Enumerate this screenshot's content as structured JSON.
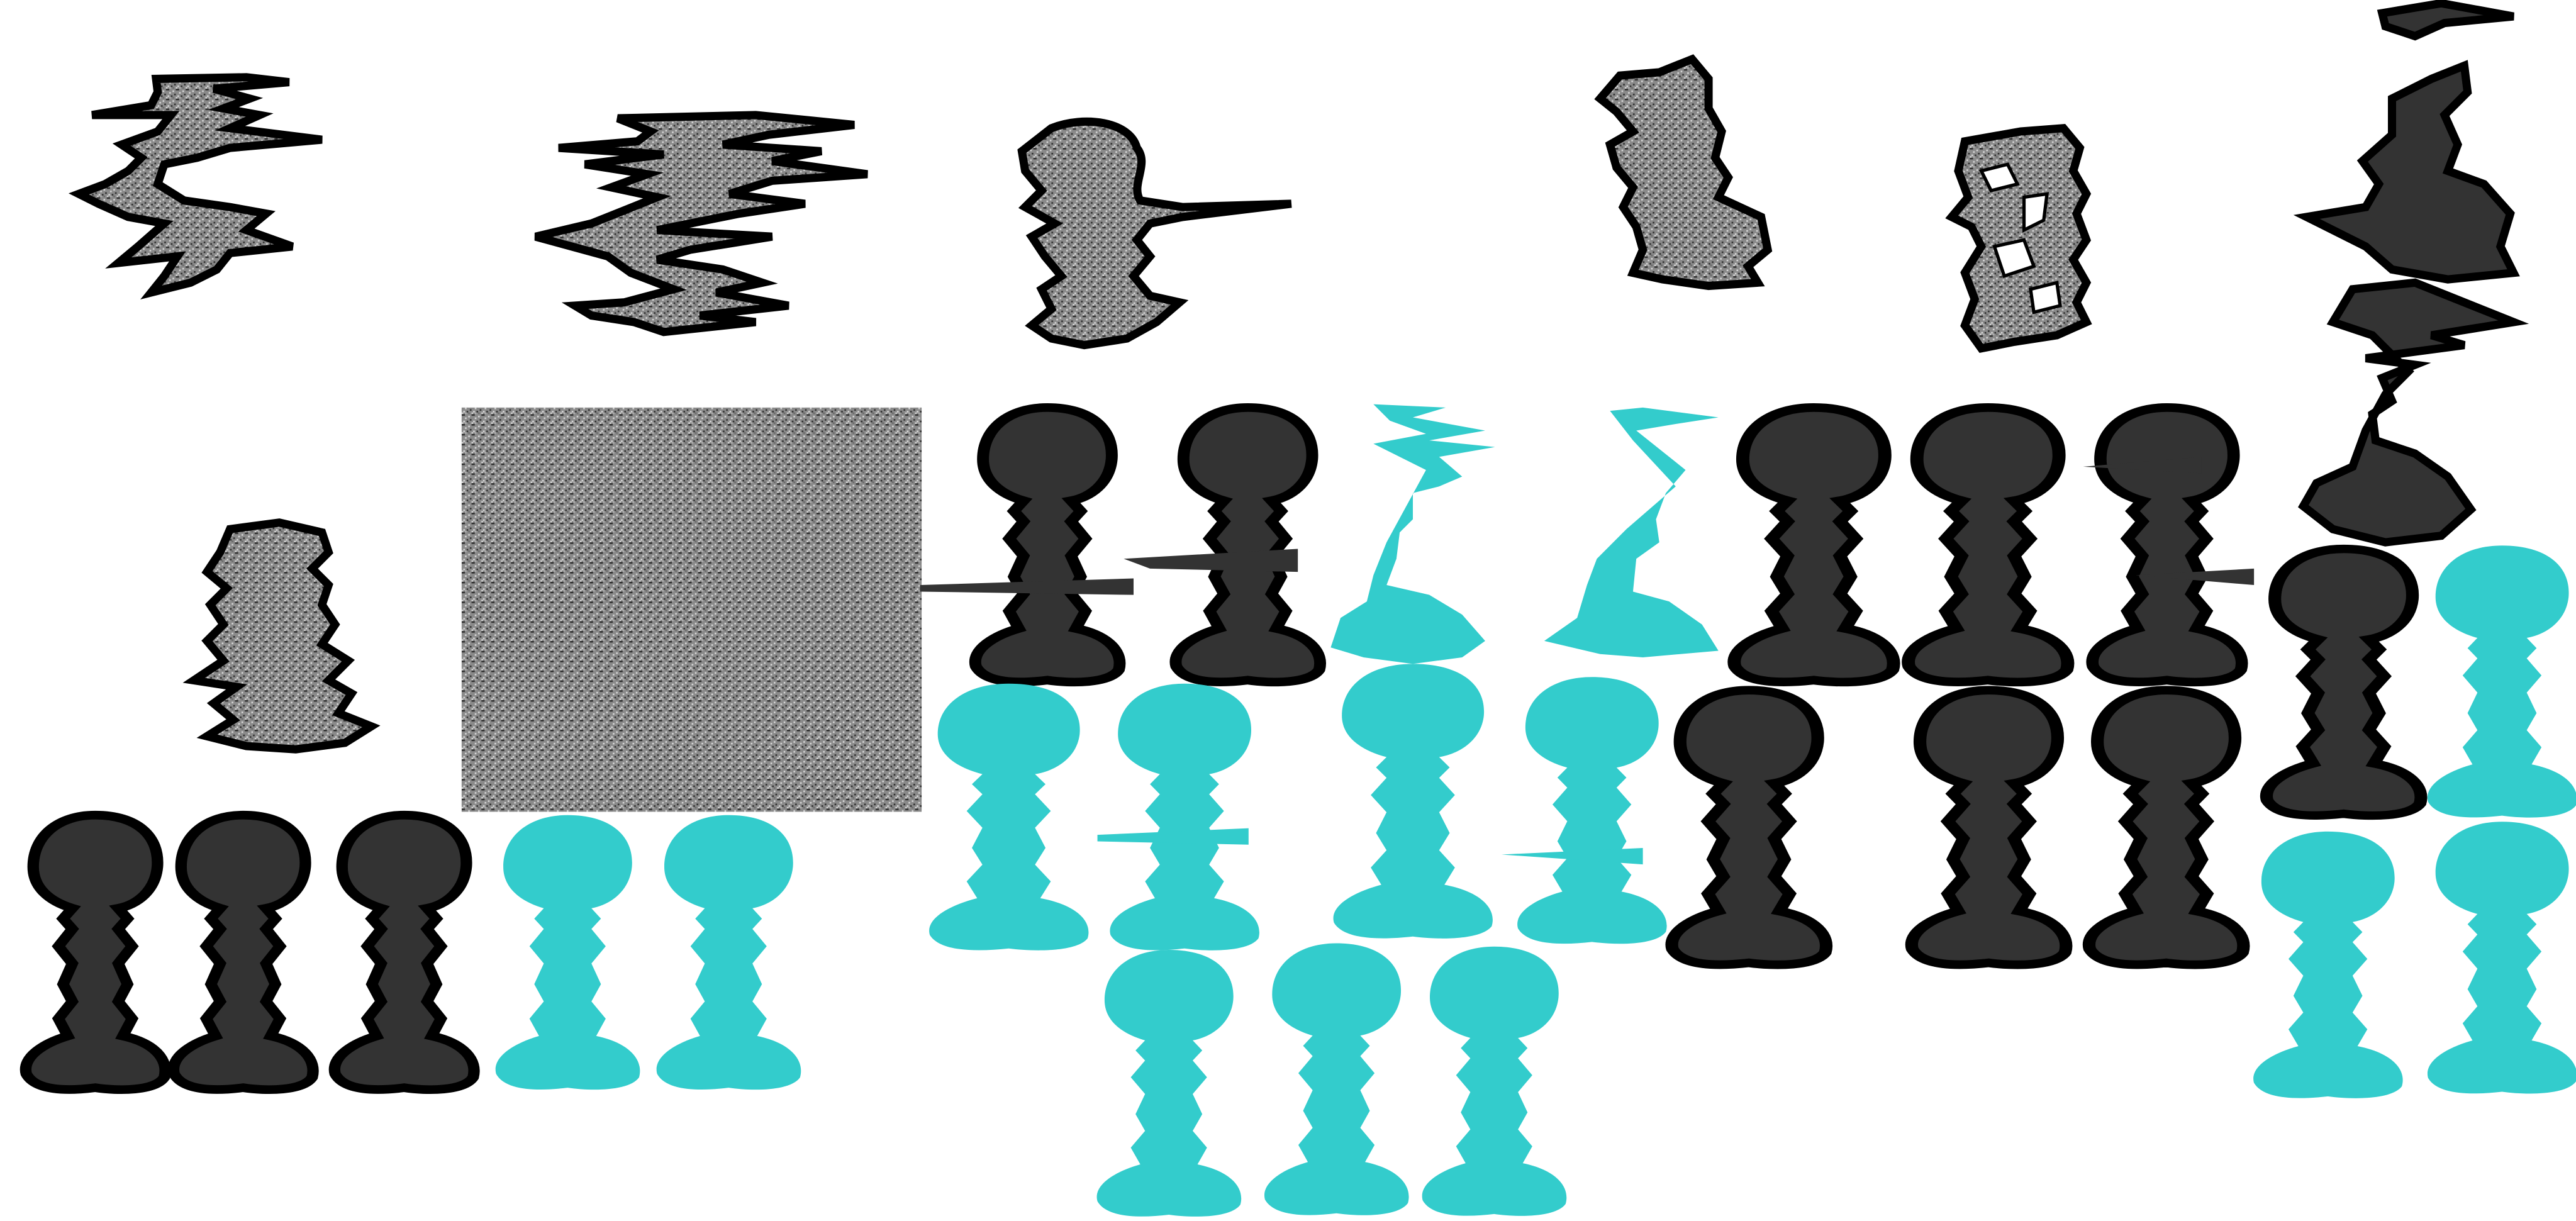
{
  "canvas": {
    "background": "#ffffff"
  },
  "palette": {
    "dark": "#333333",
    "teal": "#33cccc",
    "outline": "#000000",
    "noise_dark": "#2e2e2e",
    "noise_light": "#d8d8d8"
  },
  "noise_patch": {
    "icon": "noise-texture"
  },
  "groups": [
    {
      "name": "noisy-row-top",
      "color": "noise",
      "count": 6
    },
    {
      "name": "noisy-figure-left",
      "color": "noise",
      "count": 1
    },
    {
      "name": "dark-figures-bottom-left",
      "color": "#333333",
      "count": 3
    },
    {
      "name": "teal-figures-bottom-left",
      "color": "#33cccc",
      "count": 2
    },
    {
      "name": "dark-figures-glitched",
      "color": "#333333",
      "count": 2
    },
    {
      "name": "teal-figures-glitched",
      "color": "#33cccc",
      "count": 2
    },
    {
      "name": "dark-figures-middle-right",
      "color": "#333333",
      "count": 3
    },
    {
      "name": "dark-figures-lower-right",
      "color": "#333333",
      "count": 3
    },
    {
      "name": "teal-figures-middle",
      "color": "#33cccc",
      "count": 4
    },
    {
      "name": "teal-figures-bottom-center",
      "color": "#33cccc",
      "count": 3
    },
    {
      "name": "dark-glitch-column",
      "color": "#333333",
      "count": 1
    },
    {
      "name": "right-column-figures",
      "color": "mixed",
      "count": 4
    }
  ]
}
